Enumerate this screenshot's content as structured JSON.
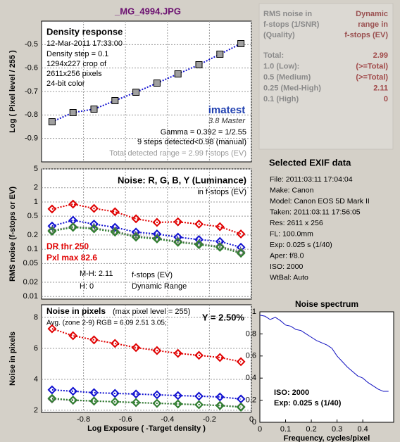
{
  "title": "_MG_4994.JPG",
  "summary": {
    "header_left": [
      "RMS noise in",
      "f-stops (1/SNR)",
      "(Quality)"
    ],
    "header_right": [
      "Dynamic",
      "range in",
      "f-stops (EV)"
    ],
    "rows": [
      [
        "Total:",
        "2.99"
      ],
      [
        "1.0  (Low):",
        "(>=Total)"
      ],
      [
        "0.5  (Medium)",
        "(>=Total)"
      ],
      [
        "0.25 (Med-High)",
        "2.11"
      ],
      [
        "0.1  (High)",
        "0"
      ]
    ]
  },
  "exif": {
    "title": "Selected EXIF data",
    "lines": [
      "File:  2011:03:11 17:04:04",
      "Make:  Canon",
      "Model: Canon EOS 5D Mark II",
      "Taken: 2011:03:11 17:56:05",
      "Res:    2611 x 256",
      "FL:    100.0mm",
      "Exp:   0.025 s  (1/40)",
      "Aper:  f/8.0",
      "ISO:   2000",
      "WtBal: Auto"
    ]
  },
  "chart_data": [
    {
      "type": "line",
      "title": "Density response",
      "ylabel": "Log ( Pixel level / 255 )",
      "annotations": {
        "date": "12-Mar-2011 17:33:00",
        "step": "Density step = 0.1",
        "crop": "1294x227 crop of",
        "pixels": "2611x256 pixels",
        "bits": "24-bit color",
        "logo": "imatest",
        "version": "3.8  Master",
        "gamma": "Gamma = 0.392 = 1/2.55",
        "steps": "9 steps detected<0.98 (manual)",
        "range": "Total detected range = 2.99 f-stops (EV)"
      },
      "x": [
        -0.95,
        -0.85,
        -0.75,
        -0.65,
        -0.55,
        -0.45,
        -0.35,
        -0.25,
        -0.15,
        -0.05
      ],
      "series": [
        {
          "color": "#a0a0a0",
          "values": [
            -0.829,
            -0.79,
            -0.775,
            -0.739,
            -0.703,
            -0.664,
            -0.625,
            -0.586,
            -0.541,
            -0.496
          ]
        }
      ],
      "xlim": [
        -1,
        0
      ],
      "ylim": [
        -1.0,
        -0.4
      ],
      "yticks": [
        -0.5,
        -0.6,
        -0.7,
        -0.8,
        -0.9
      ],
      "grid": true
    },
    {
      "type": "line",
      "title": "Noise: R, G, B, Y (Luminance)",
      "subtitle": "in f-stops (EV)",
      "ylabel": "RMS noise (f-stops or EV)",
      "annotations": {
        "dr": "DR thr 250",
        "pxl": "Pxl max 82.6",
        "mh": "M-H: 2.11",
        "h": "H:    0",
        "unit": "f-stops (EV)",
        "dr_label": "Dynamic Range"
      },
      "x": [
        -0.95,
        -0.85,
        -0.75,
        -0.65,
        -0.55,
        -0.45,
        -0.35,
        -0.25,
        -0.15,
        -0.05
      ],
      "series": [
        {
          "color": "#e00000",
          "values": [
            0.71,
            0.9,
            0.73,
            0.62,
            0.44,
            0.37,
            0.38,
            0.34,
            0.3,
            0.21
          ]
        },
        {
          "color": "#1010d0",
          "values": [
            0.31,
            0.41,
            0.34,
            0.29,
            0.23,
            0.21,
            0.18,
            0.16,
            0.146,
            0.11
          ]
        },
        {
          "color": "#707070",
          "values": [
            0.25,
            0.3,
            0.28,
            0.24,
            0.19,
            0.17,
            0.146,
            0.13,
            0.115,
            0.087
          ]
        },
        {
          "color": "#308030",
          "values": [
            0.24,
            0.29,
            0.27,
            0.23,
            0.18,
            0.165,
            0.14,
            0.125,
            0.11,
            0.082
          ]
        }
      ],
      "log_y": true,
      "xlim": [
        -1,
        0
      ],
      "ylim": [
        0.0088,
        5
      ],
      "yticks": [
        5,
        2,
        1,
        0.5,
        0.2,
        0.1,
        0.05,
        0.02,
        0.01
      ],
      "grid": true
    },
    {
      "type": "line",
      "title": "Noise in pixels",
      "subtitle": "(max pixel level = 255)",
      "ylabel": "Noise in pixels",
      "xlabel": "Log Exposure ( -Target density )",
      "annotations": {
        "avg": "Avg. (zone 2-9) RGB = 6.09  2.51  3.05;",
        "y": "Y = 2.50%"
      },
      "x": [
        -0.95,
        -0.85,
        -0.75,
        -0.65,
        -0.55,
        -0.45,
        -0.35,
        -0.25,
        -0.15,
        -0.05
      ],
      "series": [
        {
          "color": "#e00000",
          "values": [
            7.27,
            6.82,
            6.55,
            6.32,
            6.05,
            5.86,
            5.68,
            5.55,
            5.41,
            5.14
          ]
        },
        {
          "color": "#1010d0",
          "values": [
            3.32,
            3.23,
            3.14,
            3.09,
            3.05,
            3.0,
            2.95,
            2.91,
            2.86,
            2.73
          ]
        },
        {
          "color": "#707070",
          "values": [
            2.73,
            2.64,
            2.59,
            2.55,
            2.5,
            2.45,
            2.41,
            2.36,
            2.32,
            2.23
          ]
        },
        {
          "color": "#308030",
          "values": [
            2.77,
            2.66,
            2.6,
            2.55,
            2.5,
            2.45,
            2.41,
            2.36,
            2.3,
            2.2
          ]
        }
      ],
      "xlim": [
        -1,
        0
      ],
      "ylim": [
        1.86,
        8.82
      ],
      "xticks": [
        -0.8,
        -0.6,
        -0.4,
        -0.2,
        0
      ],
      "yticks": [
        8,
        6,
        4,
        2
      ],
      "grid": true
    },
    {
      "type": "line",
      "title": "Noise spectrum",
      "xlabel": "Frequency, cycles/pixel",
      "annotations": {
        "iso": "ISO:  2000",
        "exp": "Exp:   0.025 s  (1/40)"
      },
      "x": [
        0,
        0.02,
        0.04,
        0.06,
        0.08,
        0.1,
        0.12,
        0.14,
        0.16,
        0.18,
        0.2,
        0.22,
        0.24,
        0.26,
        0.28,
        0.3,
        0.32,
        0.34,
        0.36,
        0.38,
        0.4,
        0.42,
        0.44,
        0.46,
        0.48,
        0.5
      ],
      "series": [
        {
          "color": "#1010c0",
          "values": [
            0.97,
            0.96,
            0.93,
            0.95,
            0.92,
            0.88,
            0.87,
            0.84,
            0.83,
            0.8,
            0.77,
            0.74,
            0.72,
            0.7,
            0.67,
            0.6,
            0.55,
            0.5,
            0.46,
            0.42,
            0.4,
            0.36,
            0.33,
            0.3,
            0.28,
            0.28
          ]
        }
      ],
      "xlim": [
        0,
        0.52
      ],
      "ylim": [
        0,
        1
      ],
      "xticks": [
        0,
        0.1,
        0.2,
        0.3,
        0.4
      ],
      "yticks": [
        1,
        0.8,
        0.6,
        0.4,
        0.2,
        0
      ],
      "grid": false
    }
  ]
}
